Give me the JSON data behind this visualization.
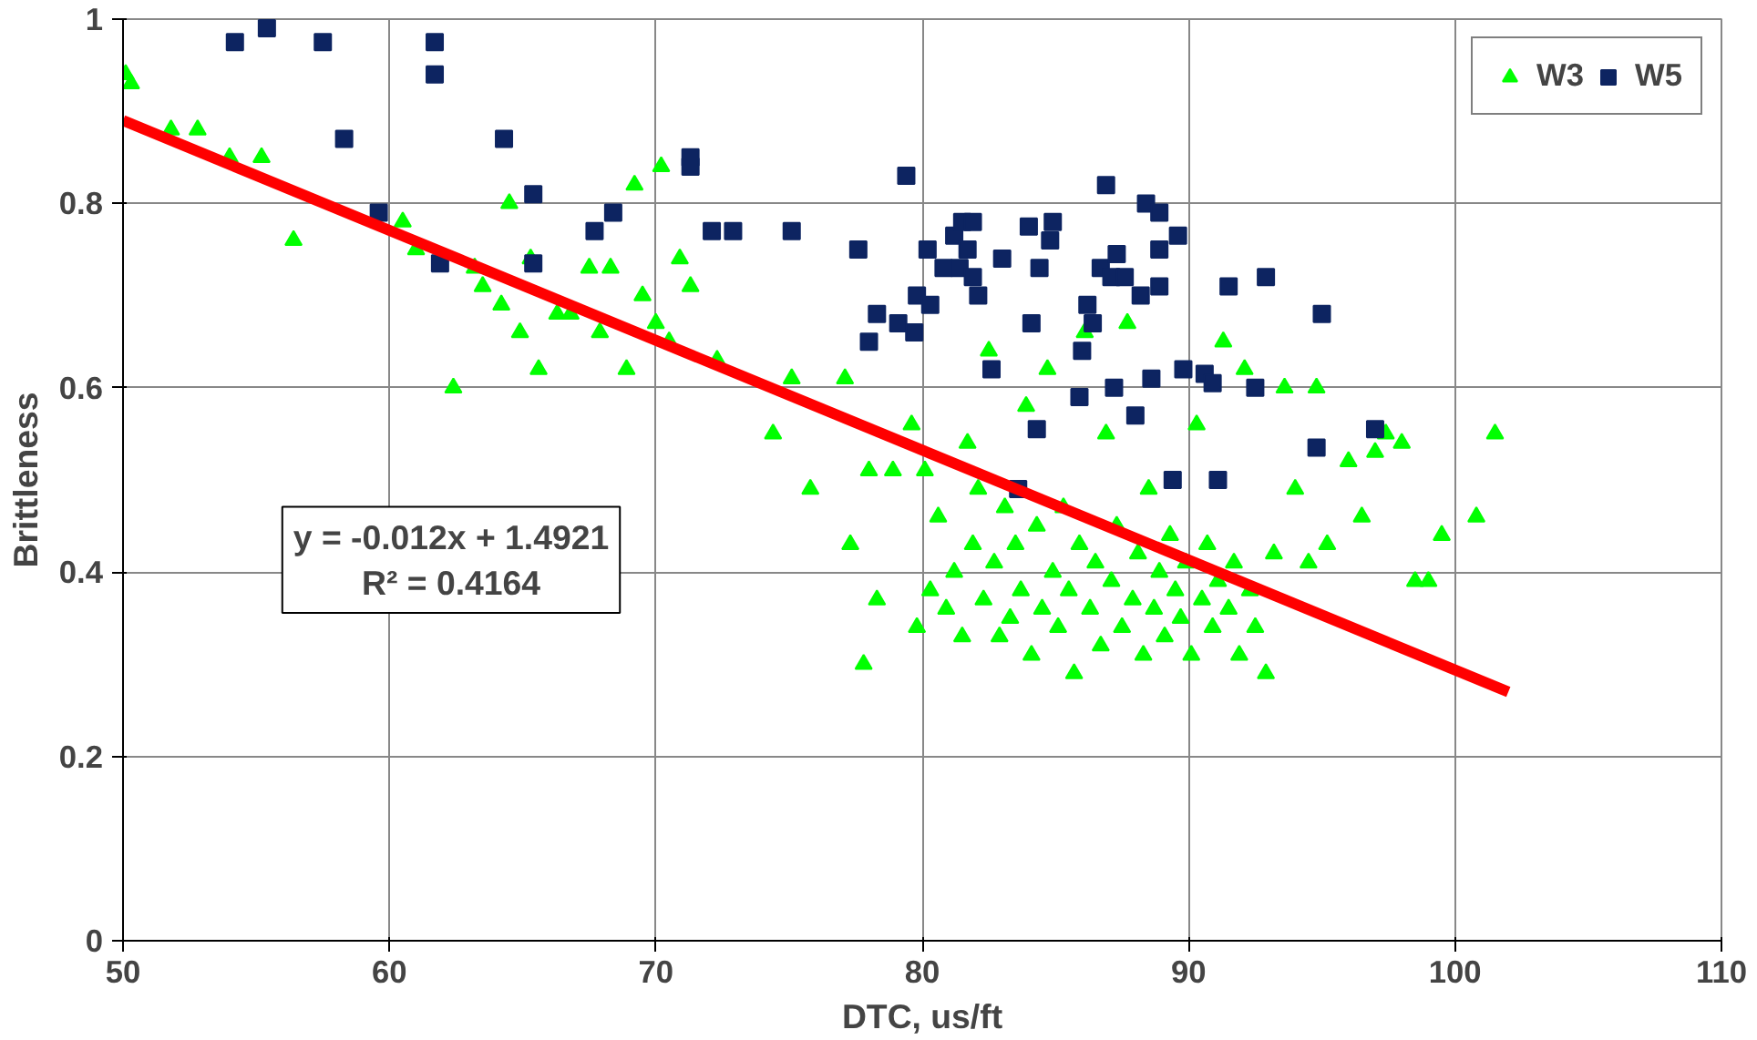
{
  "chart_data": {
    "type": "scatter",
    "xlabel": "DTC, us/ft",
    "ylabel": "Brittleness",
    "xlim": [
      50,
      110
    ],
    "xticks": [
      50,
      60,
      70,
      80,
      90,
      100,
      110
    ],
    "ylim": [
      0,
      1
    ],
    "yticks": [
      0,
      0.2,
      0.4,
      0.6,
      0.8,
      1
    ],
    "grid": true,
    "legend": "top right",
    "annotations": [
      "y = -0.012x + 1.4921",
      "R² = 0.4164"
    ],
    "series": [
      {
        "name": "W3",
        "marker": "triangle",
        "color": "#00ff00",
        "x": [
          50.1,
          50.3,
          51.8,
          52.8,
          54.0,
          55.2,
          56.4,
          60.5,
          61.0,
          62.4,
          63.2,
          63.5,
          64.2,
          64.5,
          64.9,
          65.3,
          65.6,
          66.3,
          66.8,
          67.5,
          67.9,
          68.3,
          68.9,
          69.2,
          69.5,
          70.0,
          70.2,
          70.5,
          70.9,
          71.3,
          72.3,
          74.4,
          75.1,
          75.8,
          77.1,
          77.3,
          77.8,
          78.0,
          78.3,
          78.9,
          79.6,
          79.8,
          80.1,
          80.3,
          80.6,
          80.9,
          81.2,
          81.5,
          81.7,
          81.9,
          82.1,
          82.3,
          82.5,
          82.7,
          82.9,
          83.1,
          83.3,
          83.5,
          83.7,
          83.9,
          84.1,
          84.3,
          84.5,
          84.7,
          84.9,
          85.1,
          85.3,
          85.5,
          85.7,
          85.9,
          86.1,
          86.3,
          86.5,
          86.7,
          86.9,
          87.1,
          87.3,
          87.5,
          87.7,
          87.9,
          88.1,
          88.3,
          88.5,
          88.7,
          88.9,
          89.1,
          89.3,
          89.5,
          89.7,
          89.9,
          90.1,
          90.3,
          90.5,
          90.7,
          90.9,
          91.1,
          91.3,
          91.5,
          91.7,
          91.9,
          92.1,
          92.3,
          92.5,
          92.9,
          93.2,
          93.6,
          94.0,
          94.5,
          94.8,
          95.2,
          96.0,
          96.5,
          97.0,
          97.4,
          98.0,
          98.5,
          99.0,
          99.5,
          100.8,
          101.5
        ],
        "values": [
          0.94,
          0.93,
          0.88,
          0.88,
          0.85,
          0.85,
          0.76,
          0.78,
          0.75,
          0.6,
          0.73,
          0.71,
          0.69,
          0.8,
          0.66,
          0.74,
          0.62,
          0.68,
          0.68,
          0.73,
          0.66,
          0.73,
          0.62,
          0.82,
          0.7,
          0.67,
          0.84,
          0.65,
          0.74,
          0.71,
          0.63,
          0.55,
          0.61,
          0.49,
          0.61,
          0.43,
          0.3,
          0.51,
          0.37,
          0.51,
          0.56,
          0.34,
          0.51,
          0.38,
          0.46,
          0.36,
          0.4,
          0.33,
          0.54,
          0.43,
          0.49,
          0.37,
          0.64,
          0.41,
          0.33,
          0.47,
          0.35,
          0.43,
          0.38,
          0.58,
          0.31,
          0.45,
          0.36,
          0.62,
          0.4,
          0.34,
          0.47,
          0.38,
          0.29,
          0.43,
          0.66,
          0.36,
          0.41,
          0.32,
          0.55,
          0.39,
          0.45,
          0.34,
          0.67,
          0.37,
          0.42,
          0.31,
          0.49,
          0.36,
          0.4,
          0.33,
          0.44,
          0.38,
          0.35,
          0.41,
          0.31,
          0.56,
          0.37,
          0.43,
          0.34,
          0.39,
          0.65,
          0.36,
          0.41,
          0.31,
          0.62,
          0.38,
          0.34,
          0.29,
          0.42,
          0.6,
          0.49,
          0.41,
          0.6,
          0.43,
          0.52,
          0.46,
          0.53,
          0.55,
          0.54,
          0.39,
          0.39,
          0.44,
          0.46,
          0.55
        ]
      },
      {
        "name": "W5",
        "marker": "square",
        "color": "#0d2461",
        "x": [
          54.2,
          55.4,
          57.5,
          58.3,
          59.6,
          61.7,
          61.7,
          61.9,
          64.3,
          65.4,
          65.4,
          67.7,
          68.4,
          71.3,
          71.3,
          72.1,
          72.9,
          75.1,
          77.6,
          78.0,
          78.3,
          79.4,
          79.1,
          79.7,
          79.8,
          80.2,
          80.3,
          80.8,
          81.2,
          81.4,
          81.5,
          81.7,
          81.9,
          82.1,
          81.9,
          82.6,
          83.0,
          83.6,
          84.0,
          84.1,
          84.3,
          84.4,
          84.8,
          84.9,
          85.9,
          86.0,
          86.2,
          86.4,
          86.7,
          86.9,
          87.1,
          87.2,
          87.3,
          87.6,
          88.0,
          88.2,
          88.4,
          88.6,
          88.9,
          88.9,
          88.9,
          89.4,
          89.6,
          89.8,
          90.6,
          90.9,
          91.1,
          91.5,
          92.5,
          92.9,
          94.8,
          95.0,
          97.0
        ],
        "values": [
          0.975,
          0.99,
          0.975,
          0.87,
          0.79,
          0.975,
          0.94,
          0.735,
          0.87,
          0.81,
          0.735,
          0.77,
          0.79,
          0.85,
          0.84,
          0.77,
          0.77,
          0.77,
          0.75,
          0.65,
          0.68,
          0.83,
          0.67,
          0.66,
          0.7,
          0.75,
          0.69,
          0.73,
          0.765,
          0.73,
          0.78,
          0.75,
          0.78,
          0.7,
          0.72,
          0.62,
          0.74,
          0.49,
          0.775,
          0.67,
          0.555,
          0.73,
          0.76,
          0.78,
          0.59,
          0.64,
          0.69,
          0.67,
          0.73,
          0.82,
          0.72,
          0.6,
          0.745,
          0.72,
          0.57,
          0.7,
          0.8,
          0.61,
          0.79,
          0.75,
          0.71,
          0.5,
          0.765,
          0.62,
          0.615,
          0.605,
          0.5,
          0.71,
          0.6,
          0.72,
          0.535,
          0.68,
          0.555
        ]
      },
      {
        "type": "line",
        "color": "#ff0000",
        "x": [
          50,
          102
        ],
        "values": [
          0.89,
          0.27
        ]
      }
    ]
  }
}
